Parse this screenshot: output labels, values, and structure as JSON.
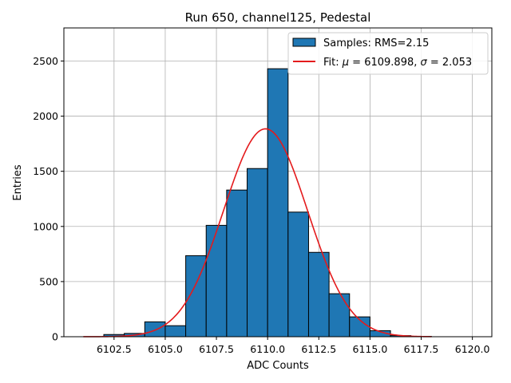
{
  "chart_data": {
    "type": "bar",
    "title": "Run 650, channel125, Pedestal",
    "xlabel": "ADC Counts",
    "ylabel": "Entries",
    "xlim": [
      6100.05,
      6120.95
    ],
    "ylim": [
      0,
      2800
    ],
    "grid": true,
    "legend_position": "top-right",
    "xticks": [
      6102.5,
      6105.0,
      6107.5,
      6110.0,
      6112.5,
      6115.0,
      6117.5,
      6120.0
    ],
    "xtick_labels": [
      "6102.5",
      "6105.0",
      "6107.5",
      "6110.0",
      "6112.5",
      "6115.0",
      "6117.5",
      "6120.0"
    ],
    "yticks": [
      0,
      500,
      1000,
      1500,
      2000,
      2500
    ],
    "ytick_labels": [
      "0",
      "500",
      "1000",
      "1500",
      "2000",
      "2500"
    ],
    "histogram": {
      "name": "Samples: RMS=2.15",
      "color": "#1f77b4",
      "edgecolor": "#000000",
      "bins": [
        {
          "start": 6101,
          "end": 6102,
          "value": 0
        },
        {
          "start": 6102,
          "end": 6103,
          "value": 20
        },
        {
          "start": 6103,
          "end": 6104,
          "value": 30
        },
        {
          "start": 6104,
          "end": 6105,
          "value": 135
        },
        {
          "start": 6105,
          "end": 6106,
          "value": 100
        },
        {
          "start": 6106,
          "end": 6107,
          "value": 735
        },
        {
          "start": 6107,
          "end": 6108,
          "value": 1010
        },
        {
          "start": 6108,
          "end": 6109,
          "value": 1330
        },
        {
          "start": 6109,
          "end": 6110,
          "value": 1525
        },
        {
          "start": 6110,
          "end": 6111,
          "value": 2430
        },
        {
          "start": 6111,
          "end": 6112,
          "value": 1130
        },
        {
          "start": 6112,
          "end": 6113,
          "value": 765
        },
        {
          "start": 6113,
          "end": 6114,
          "value": 390
        },
        {
          "start": 6114,
          "end": 6115,
          "value": 180
        },
        {
          "start": 6115,
          "end": 6116,
          "value": 55
        },
        {
          "start": 6116,
          "end": 6117,
          "value": 10
        },
        {
          "start": 6117,
          "end": 6118,
          "value": 3
        },
        {
          "start": 6118,
          "end": 6119,
          "value": 0
        },
        {
          "start": 6119,
          "end": 6120,
          "value": 0
        }
      ]
    },
    "fit": {
      "name": "Fit: μ = 6109.898, σ = 2.053",
      "label_prefix": "Fit: ",
      "mu_symbol": "μ",
      "mu_text": " = 6109.898, ",
      "sigma_symbol": "σ",
      "sigma_text": " = 2.053",
      "color": "#e41a1c",
      "mu": 6109.898,
      "sigma": 2.053,
      "amplitude": 1885,
      "x_range": [
        6101,
        6118
      ]
    }
  }
}
